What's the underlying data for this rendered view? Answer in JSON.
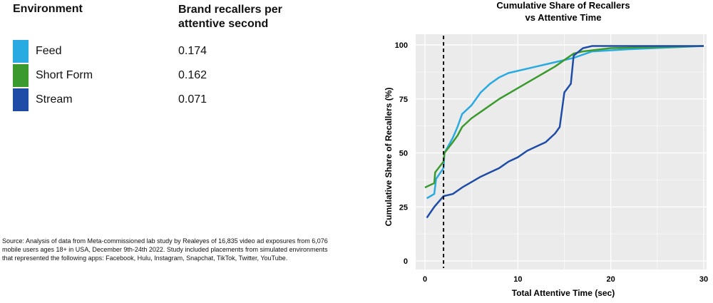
{
  "table": {
    "col1": "Environment",
    "col2": "Brand recallers per attentive second",
    "rows": [
      {
        "env": "Feed",
        "value": "0.174",
        "color": "#29aae1"
      },
      {
        "env": "Short Form",
        "value": "0.162",
        "color": "#3b9a2e"
      },
      {
        "env": "Stream",
        "value": "0.071",
        "color": "#1e4ca6"
      }
    ]
  },
  "source": "Source: Analysis of data from Meta-commissioned lab study by Realeyes of 16,835 video ad exposures from 6,076 mobile users ages 18+ in USA, December 9th-24th 2022. Study included placements from simulated environments that represented the following apps: Facebook, Hulu, Instagram, Snapchat, TikTok, Twitter, YouTube.",
  "chart_data": {
    "type": "line",
    "title": "Cumulative Share of Recallers vs Attentive Time",
    "title_lines": [
      "Cumulative Share of Recallers",
      "vs Attentive Time"
    ],
    "xlabel": "Total Attentive Time (sec)",
    "ylabel": "Cumulative Share of Recallers (%)",
    "xlim": [
      0,
      30
    ],
    "ylim": [
      0,
      100
    ],
    "xticks": [
      "0",
      "10",
      "20",
      "30"
    ],
    "yticks": [
      "0",
      "25",
      "50",
      "75",
      "100"
    ],
    "grid": true,
    "reference_line_x": 2,
    "series": [
      {
        "name": "Feed",
        "color": "#29aae1",
        "x": [
          0.2,
          1,
          1.2,
          2,
          2.1,
          3,
          3.5,
          4,
          5,
          6,
          7,
          8,
          9,
          10,
          12,
          14,
          16,
          18,
          22,
          30
        ],
        "y": [
          29,
          31,
          38,
          43,
          50,
          57,
          62,
          68,
          72,
          78,
          82,
          85,
          87,
          88,
          90,
          92,
          94,
          97,
          98,
          99.5
        ]
      },
      {
        "name": "Short Form",
        "color": "#3b9a2e",
        "x": [
          0,
          1,
          1.1,
          2,
          2.1,
          3,
          3.5,
          4,
          5,
          6,
          8,
          10,
          12,
          14,
          15,
          16,
          17,
          20,
          30
        ],
        "y": [
          34,
          36,
          41,
          46,
          50,
          55,
          58,
          62,
          66,
          69,
          75,
          80,
          85,
          90,
          93,
          96,
          97,
          98.5,
          99.5
        ]
      },
      {
        "name": "Stream",
        "color": "#1e4ca6",
        "x": [
          0.2,
          1,
          2,
          3,
          4,
          6,
          7,
          8,
          9,
          10,
          11,
          12,
          13,
          14,
          14.5,
          15,
          15.7,
          16,
          17,
          18,
          30
        ],
        "y": [
          20,
          25,
          30,
          31,
          34,
          39,
          41,
          43,
          46,
          48,
          51,
          53,
          55,
          59,
          62,
          78,
          82,
          95,
          98.5,
          99.5,
          99.5
        ]
      }
    ]
  }
}
